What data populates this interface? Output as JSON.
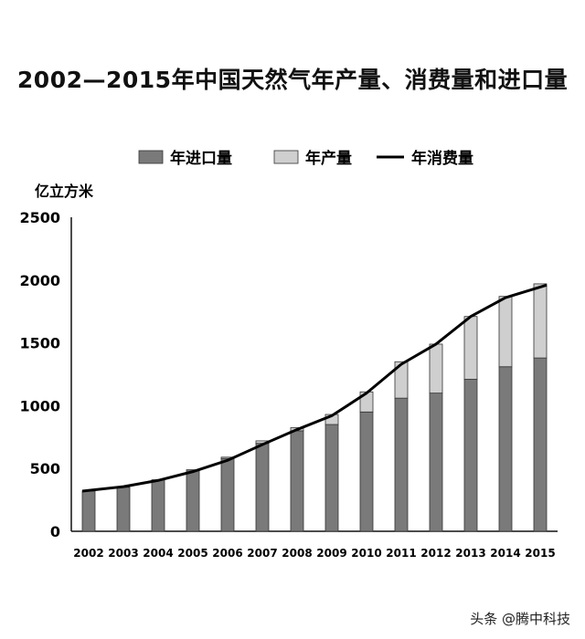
{
  "chart_data": {
    "type": "bar",
    "title": "2002—2015年中国天然气年产量、消费量和进口量",
    "ylabel": "亿立方米",
    "xlabel": "",
    "ylim": [
      0,
      2500
    ],
    "yticks": [
      0,
      500,
      1000,
      1500,
      2000,
      2500
    ],
    "grid": false,
    "legend_position": "top",
    "stacked": true,
    "categories": [
      "2002",
      "2003",
      "2004",
      "2005",
      "2006",
      "2007",
      "2008",
      "2009",
      "2010",
      "2011",
      "2012",
      "2013",
      "2014",
      "2015"
    ],
    "series": [
      {
        "name": "年进口量",
        "type": "bar",
        "color": "#7a7a7a",
        "values": [
          320,
          350,
          410,
          490,
          580,
          700,
          800,
          850,
          950,
          1060,
          1100,
          1210,
          1310,
          1380
        ]
      },
      {
        "name": "年产量",
        "type": "bar",
        "color": "#cfcfcf",
        "values": [
          0,
          0,
          0,
          0,
          10,
          20,
          25,
          80,
          160,
          290,
          390,
          500,
          560,
          590
        ]
      },
      {
        "name": "年消费量",
        "type": "line",
        "color": "#000000",
        "values": [
          320,
          355,
          405,
          475,
          565,
          690,
          810,
          920,
          1100,
          1330,
          1490,
          1710,
          1860,
          1960
        ]
      }
    ]
  },
  "watermark": "头条 @腾中科技"
}
